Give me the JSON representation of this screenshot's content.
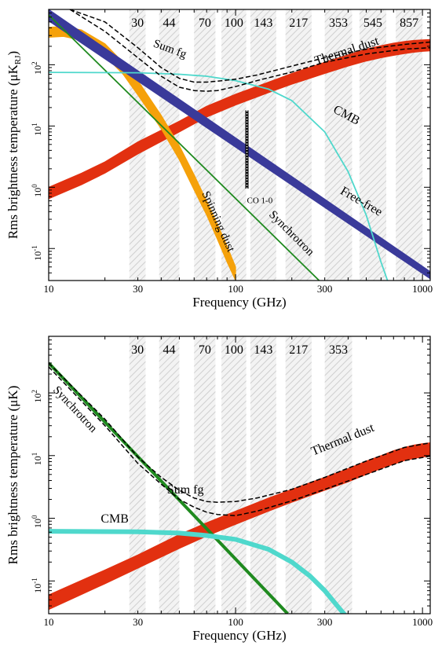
{
  "chart_data": [
    {
      "type": "line",
      "xlabel": "Frequency (GHz)",
      "ylabel_main": "Rms brightness temperature (μK",
      "ylabel_sub": "RJ",
      "ylabel_close": ")",
      "xscale": "log",
      "yscale": "log",
      "xlim": [
        10,
        1100
      ],
      "ylim": [
        0.03,
        800
      ],
      "xticks": [
        {
          "v": 10,
          "label": "10"
        },
        {
          "v": 30,
          "label": "30"
        },
        {
          "v": 100,
          "label": "100"
        },
        {
          "v": 300,
          "label": "300"
        },
        {
          "v": 1000,
          "label": "1000"
        }
      ],
      "yticks": [
        {
          "v": 0.1,
          "exp": "-1"
        },
        {
          "v": 1,
          "exp": "0"
        },
        {
          "v": 10,
          "exp": "1"
        },
        {
          "v": 100,
          "exp": "2"
        }
      ],
      "bands": [
        {
          "label": "30",
          "lo": 27,
          "hi": 33
        },
        {
          "label": "44",
          "lo": 39,
          "hi": 50
        },
        {
          "label": "70",
          "lo": 60,
          "hi": 78
        },
        {
          "label": "100",
          "lo": 84,
          "hi": 114
        },
        {
          "label": "143",
          "lo": 120,
          "hi": 165
        },
        {
          "label": "217",
          "lo": 185,
          "hi": 255
        },
        {
          "label": "353",
          "lo": 300,
          "hi": 420
        },
        {
          "label": "545",
          "lo": 460,
          "hi": 640
        },
        {
          "label": "857",
          "lo": 720,
          "hi": 1000
        }
      ],
      "series": [
        {
          "name": "Thermal dust",
          "style": "band",
          "color": "#e23010",
          "x": [
            10,
            15,
            20,
            30,
            50,
            70,
            100,
            150,
            200,
            300,
            400,
            500,
            600,
            700,
            800,
            900,
            1000,
            1100
          ],
          "lower": [
            0.65,
            1.1,
            1.7,
            3.5,
            8,
            14,
            22,
            35,
            48,
            72,
            95,
            115,
            130,
            142,
            152,
            160,
            165,
            168
          ],
          "upper": [
            1.0,
            1.7,
            2.6,
            5.5,
            12,
            21,
            33,
            52,
            72,
            110,
            145,
            180,
            205,
            225,
            240,
            250,
            255,
            258
          ]
        },
        {
          "name": "Spinning dust",
          "style": "band",
          "color": "#f5a10a",
          "x": [
            10,
            12,
            15,
            20,
            25,
            30,
            40,
            50,
            60,
            70,
            80,
            90,
            100
          ],
          "lower": [
            280,
            290,
            250,
            140,
            70,
            32,
            9,
            2.8,
            0.9,
            0.35,
            0.14,
            0.06,
            0.03
          ],
          "upper": [
            410,
            420,
            370,
            220,
            110,
            55,
            15,
            4.8,
            1.6,
            0.6,
            0.25,
            0.11,
            0.05
          ]
        },
        {
          "name": "Free-free",
          "style": "band",
          "color": "#3a3a9a",
          "x": [
            10,
            1100
          ],
          "lower": [
            520,
            0.032
          ],
          "upper": [
            800,
            0.042
          ]
        },
        {
          "name": "Synchrotron",
          "style": "line",
          "color": "#1f8a1f",
          "width": 1.8,
          "x": [
            10,
            280
          ],
          "y": [
            650,
            0.03
          ]
        },
        {
          "name": "CMB",
          "style": "line",
          "color": "#4fd8cc",
          "width": 1.8,
          "x": [
            10,
            30,
            50,
            70,
            100,
            150,
            200,
            300,
            400,
            500,
            600,
            650
          ],
          "y": [
            75,
            74,
            70,
            65,
            55,
            40,
            26,
            8,
            1.8,
            0.35,
            0.06,
            0.03
          ]
        },
        {
          "name": "Sum fg",
          "style": "dashed",
          "color": "#000000",
          "x": [
            13,
            20,
            30,
            40,
            50,
            60,
            70,
            80,
            100,
            130,
            200,
            300,
            500,
            800,
            1100
          ],
          "y": [
            800,
            350,
            130,
            65,
            43,
            38,
            37,
            38,
            44,
            55,
            76,
            110,
            150,
            180,
            190
          ],
          "y2": [
            800,
            500,
            190,
            90,
            60,
            52,
            52,
            54,
            58,
            68,
            95,
            130,
            180,
            215,
            235
          ]
        }
      ],
      "annotations": [
        {
          "text": "Sum fg",
          "x": 36,
          "y": 200,
          "rot": 20,
          "size": 15,
          "color": "#000000"
        },
        {
          "text": "Thermal dust",
          "x": 270,
          "y": 100,
          "rot": -18,
          "size": 16,
          "color": "#e23010"
        },
        {
          "text": "CMB",
          "x": 330,
          "y": 17,
          "rot": 28,
          "size": 16,
          "color": "#4fd8cc"
        },
        {
          "text": "Free-free",
          "x": 360,
          "y": 0.8,
          "rot": 30,
          "size": 16,
          "color": "#3a3a9a"
        },
        {
          "text": "Synchrotron",
          "x": 150,
          "y": 0.35,
          "rot": 45,
          "size": 15,
          "color": "#1f8a1f"
        },
        {
          "text": "Spinning dust",
          "x": 66,
          "y": 0.8,
          "rot": 66,
          "size": 15,
          "color": "#f5a10a"
        },
        {
          "text": "CO 1-0",
          "x": 115,
          "y": 0.55,
          "rot": 0,
          "size": 11,
          "color": "#000000"
        }
      ],
      "co_line": {
        "x": 115,
        "y_lo": 0.95,
        "y_hi": 18
      }
    },
    {
      "type": "line",
      "xlabel": "Frequency (GHz)",
      "ylabel_main": "Rms brightness temperature (μK)",
      "ylabel_sub": "",
      "ylabel_close": "",
      "xscale": "log",
      "yscale": "log",
      "xlim": [
        10,
        1100
      ],
      "ylim": [
        0.03,
        800
      ],
      "xticks": [
        {
          "v": 10,
          "label": "10"
        },
        {
          "v": 30,
          "label": "30"
        },
        {
          "v": 100,
          "label": "100"
        },
        {
          "v": 300,
          "label": "300"
        },
        {
          "v": 1000,
          "label": "1000"
        }
      ],
      "yticks": [
        {
          "v": 0.1,
          "exp": "-1"
        },
        {
          "v": 1,
          "exp": "0"
        },
        {
          "v": 10,
          "exp": "1"
        },
        {
          "v": 100,
          "exp": "2"
        }
      ],
      "bands": [
        {
          "label": "30",
          "lo": 27,
          "hi": 33
        },
        {
          "label": "44",
          "lo": 39,
          "hi": 50
        },
        {
          "label": "70",
          "lo": 60,
          "hi": 78
        },
        {
          "label": "100",
          "lo": 84,
          "hi": 114
        },
        {
          "label": "143",
          "lo": 120,
          "hi": 165
        },
        {
          "label": "217",
          "lo": 185,
          "hi": 255
        },
        {
          "label": "353",
          "lo": 300,
          "hi": 420
        }
      ],
      "series": [
        {
          "name": "Thermal dust",
          "style": "band",
          "color": "#e23010",
          "x": [
            10,
            20,
            30,
            50,
            70,
            100,
            150,
            200,
            300,
            400,
            500,
            600,
            700,
            800,
            900,
            1000,
            1100
          ],
          "lower": [
            0.035,
            0.09,
            0.16,
            0.33,
            0.52,
            0.8,
            1.3,
            1.8,
            2.8,
            3.8,
            5,
            6.2,
            7.3,
            8.3,
            9,
            9.5,
            9.8
          ],
          "upper": [
            0.06,
            0.15,
            0.26,
            0.55,
            0.85,
            1.3,
            2.1,
            2.9,
            4.5,
            6.2,
            8.2,
            10,
            12,
            13.5,
            14.7,
            15.5,
            16
          ]
        },
        {
          "name": "Synchrotron",
          "style": "line",
          "color": "#1f8a1f",
          "width": 4,
          "x": [
            10,
            190
          ],
          "y": [
            300,
            0.03
          ]
        },
        {
          "name": "CMB",
          "style": "line",
          "color": "#4fd8cc",
          "width": 6,
          "x": [
            10,
            30,
            50,
            70,
            100,
            150,
            200,
            250,
            300,
            350,
            400
          ],
          "y": [
            0.62,
            0.61,
            0.58,
            0.53,
            0.46,
            0.32,
            0.2,
            0.12,
            0.07,
            0.04,
            0.025
          ]
        },
        {
          "name": "Sum fg",
          "style": "dashed",
          "color": "#000000",
          "x": [
            10,
            20,
            30,
            40,
            50,
            60,
            70,
            80,
            100,
            130,
            200,
            300,
            500,
            800,
            1100
          ],
          "y": [
            260,
            30,
            7.5,
            3.5,
            2.0,
            1.5,
            1.25,
            1.15,
            1.1,
            1.3,
            1.9,
            2.9,
            5,
            8.3,
            9.8
          ],
          "y2": [
            300,
            38,
            9.5,
            4.5,
            2.8,
            2.1,
            1.85,
            1.8,
            1.85,
            2.1,
            2.9,
            4.5,
            8.2,
            13.5,
            16
          ]
        }
      ],
      "annotations": [
        {
          "text": "Synchrotron",
          "x": 10.5,
          "y": 110,
          "rot": 47,
          "size": 15,
          "color": "#1f8a1f"
        },
        {
          "text": "Thermal dust",
          "x": 260,
          "y": 10,
          "rot": -22,
          "size": 16,
          "color": "#e23010"
        },
        {
          "text": "Sum fg",
          "x": 43,
          "y": 2.5,
          "rot": 0,
          "size": 16,
          "color": "#000000"
        },
        {
          "text": "CMB",
          "x": 19,
          "y": 0.85,
          "rot": 0,
          "size": 16,
          "color": "#4fd8cc"
        }
      ]
    }
  ]
}
